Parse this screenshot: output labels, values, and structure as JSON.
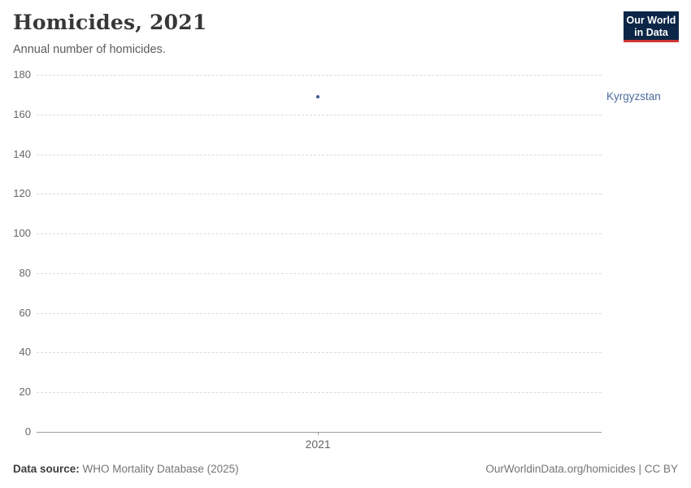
{
  "header": {
    "title": "Homicides, 2021",
    "subtitle": "Annual number of homicides.",
    "logo": {
      "line1": "Our World",
      "line2": "in Data",
      "bg_color": "#0c2647",
      "accent_color": "#cf3734"
    }
  },
  "chart_data": {
    "type": "scatter",
    "title": "Homicides, 2021",
    "subtitle": "Annual number of homicides.",
    "xlabel": "",
    "ylabel": "",
    "x": [
      2021
    ],
    "series": [
      {
        "name": "Kyrgyzstan",
        "values": [
          169
        ],
        "color": "#3d5a8f",
        "label_color": "#4c6a9c"
      }
    ],
    "ylim": [
      0,
      180
    ],
    "yticks": [
      0,
      20,
      40,
      60,
      80,
      100,
      120,
      140,
      160,
      180
    ],
    "xticks": [
      "2021"
    ],
    "grid": "horizontal-dashed",
    "legend_position": "right-entity-label"
  },
  "footer": {
    "source_prefix": "Data source:",
    "source_text": "WHO Mortality Database (2025)",
    "attribution": "OurWorldinData.org/homicides | CC BY"
  }
}
